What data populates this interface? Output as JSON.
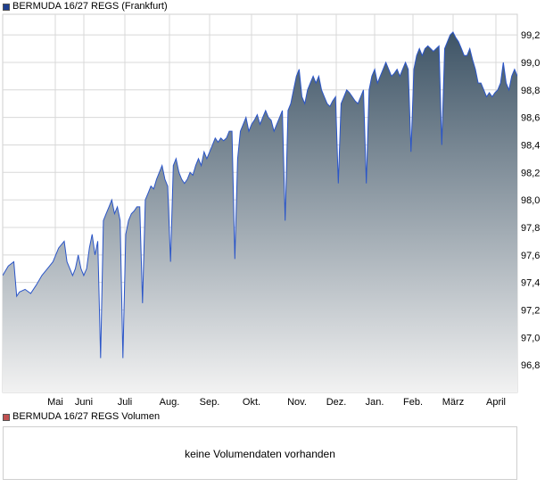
{
  "price_legend": {
    "label": "BERMUDA 16/27 REGS (Frankfurt)",
    "color": "#1f3f8f"
  },
  "volume_legend": {
    "label": "BERMUDA 16/27 REGS Volumen",
    "color": "#c05050"
  },
  "volume_message": "keine Volumendaten vorhanden",
  "colors": {
    "line": "#2a55c8",
    "fill_top": "#3e5466",
    "fill_bottom": "#f2f2f2",
    "grid": "#d8d8d8",
    "plot_bg": "#ffffff"
  },
  "chart_data": {
    "type": "area",
    "title": "",
    "xlabel": "",
    "ylabel": "",
    "ylim": [
      96.6,
      99.35
    ],
    "y_ticks": [
      "96,8",
      "97,0",
      "97,2",
      "97,4",
      "97,6",
      "97,8",
      "98,0",
      "98,2",
      "98,4",
      "98,6",
      "98,8",
      "99,0",
      "99,2"
    ],
    "x_ticks": [
      "Mai",
      "Juni",
      "Juli",
      "Aug.",
      "Sep.",
      "Okt.",
      "Nov.",
      "Dez.",
      "Jan.",
      "Feb.",
      "März",
      "April"
    ],
    "grid": true,
    "legend": "top-left",
    "series": [
      {
        "name": "BERMUDA 16/27 REGS (Frankfurt)",
        "points": [
          [
            0,
            97.45
          ],
          [
            2,
            97.52
          ],
          [
            4,
            97.55
          ],
          [
            5,
            97.3
          ],
          [
            6,
            97.33
          ],
          [
            8,
            97.35
          ],
          [
            10,
            97.32
          ],
          [
            12,
            97.38
          ],
          [
            14,
            97.45
          ],
          [
            16,
            97.5
          ],
          [
            18,
            97.55
          ],
          [
            20,
            97.65
          ],
          [
            22,
            97.7
          ],
          [
            23,
            97.55
          ],
          [
            24,
            97.5
          ],
          [
            25,
            97.45
          ],
          [
            26,
            97.5
          ],
          [
            27,
            97.6
          ],
          [
            28,
            97.5
          ],
          [
            29,
            97.45
          ],
          [
            30,
            97.5
          ],
          [
            31,
            97.65
          ],
          [
            32,
            97.75
          ],
          [
            33,
            97.6
          ],
          [
            34,
            97.7
          ],
          [
            35,
            96.85
          ],
          [
            36,
            97.85
          ],
          [
            37,
            97.9
          ],
          [
            38,
            97.95
          ],
          [
            39,
            98.0
          ],
          [
            40,
            97.9
          ],
          [
            41,
            97.95
          ],
          [
            42,
            97.85
          ],
          [
            43,
            96.85
          ],
          [
            44,
            97.75
          ],
          [
            45,
            97.85
          ],
          [
            46,
            97.9
          ],
          [
            47,
            97.92
          ],
          [
            48,
            97.95
          ],
          [
            49,
            97.95
          ],
          [
            50,
            97.25
          ],
          [
            51,
            98.0
          ],
          [
            52,
            98.05
          ],
          [
            53,
            98.1
          ],
          [
            54,
            98.08
          ],
          [
            55,
            98.15
          ],
          [
            56,
            98.2
          ],
          [
            57,
            98.25
          ],
          [
            58,
            98.15
          ],
          [
            59,
            98.1
          ],
          [
            60,
            97.55
          ],
          [
            61,
            98.25
          ],
          [
            62,
            98.3
          ],
          [
            63,
            98.2
          ],
          [
            64,
            98.15
          ],
          [
            65,
            98.12
          ],
          [
            66,
            98.15
          ],
          [
            67,
            98.2
          ],
          [
            68,
            98.18
          ],
          [
            69,
            98.25
          ],
          [
            70,
            98.3
          ],
          [
            71,
            98.25
          ],
          [
            72,
            98.35
          ],
          [
            73,
            98.3
          ],
          [
            74,
            98.35
          ],
          [
            75,
            98.4
          ],
          [
            76,
            98.45
          ],
          [
            77,
            98.42
          ],
          [
            78,
            98.45
          ],
          [
            79,
            98.43
          ],
          [
            80,
            98.45
          ],
          [
            81,
            98.5
          ],
          [
            82,
            98.5
          ],
          [
            83,
            97.57
          ],
          [
            84,
            98.3
          ],
          [
            85,
            98.5
          ],
          [
            86,
            98.55
          ],
          [
            87,
            98.6
          ],
          [
            88,
            98.5
          ],
          [
            89,
            98.55
          ],
          [
            90,
            98.58
          ],
          [
            91,
            98.62
          ],
          [
            92,
            98.55
          ],
          [
            93,
            98.6
          ],
          [
            94,
            98.65
          ],
          [
            95,
            98.6
          ],
          [
            96,
            98.58
          ],
          [
            97,
            98.5
          ],
          [
            98,
            98.55
          ],
          [
            99,
            98.6
          ],
          [
            100,
            98.65
          ],
          [
            101,
            97.85
          ],
          [
            102,
            98.65
          ],
          [
            103,
            98.7
          ],
          [
            104,
            98.8
          ],
          [
            105,
            98.9
          ],
          [
            106,
            98.95
          ],
          [
            107,
            98.75
          ],
          [
            108,
            98.7
          ],
          [
            109,
            98.8
          ],
          [
            110,
            98.85
          ],
          [
            111,
            98.9
          ],
          [
            112,
            98.85
          ],
          [
            113,
            98.9
          ],
          [
            114,
            98.8
          ],
          [
            115,
            98.75
          ],
          [
            116,
            98.7
          ],
          [
            117,
            98.68
          ],
          [
            118,
            98.72
          ],
          [
            119,
            98.75
          ],
          [
            120,
            98.12
          ],
          [
            121,
            98.7
          ],
          [
            122,
            98.75
          ],
          [
            123,
            98.8
          ],
          [
            124,
            98.78
          ],
          [
            125,
            98.75
          ],
          [
            126,
            98.72
          ],
          [
            127,
            98.7
          ],
          [
            128,
            98.75
          ],
          [
            129,
            98.8
          ],
          [
            130,
            98.12
          ],
          [
            131,
            98.8
          ],
          [
            132,
            98.9
          ],
          [
            133,
            98.95
          ],
          [
            134,
            98.85
          ],
          [
            135,
            98.9
          ],
          [
            136,
            98.95
          ],
          [
            137,
            99.0
          ],
          [
            138,
            98.95
          ],
          [
            139,
            98.9
          ],
          [
            140,
            98.92
          ],
          [
            141,
            98.95
          ],
          [
            142,
            98.9
          ],
          [
            143,
            98.95
          ],
          [
            144,
            99.0
          ],
          [
            145,
            98.95
          ],
          [
            146,
            98.35
          ],
          [
            147,
            98.95
          ],
          [
            148,
            99.05
          ],
          [
            149,
            99.1
          ],
          [
            150,
            99.05
          ],
          [
            151,
            99.1
          ],
          [
            152,
            99.12
          ],
          [
            153,
            99.1
          ],
          [
            154,
            99.08
          ],
          [
            155,
            99.1
          ],
          [
            156,
            99.12
          ],
          [
            157,
            98.4
          ],
          [
            158,
            99.1
          ],
          [
            159,
            99.15
          ],
          [
            160,
            99.2
          ],
          [
            161,
            99.22
          ],
          [
            162,
            99.18
          ],
          [
            163,
            99.15
          ],
          [
            164,
            99.1
          ],
          [
            165,
            99.05
          ],
          [
            166,
            99.05
          ],
          [
            167,
            99.1
          ],
          [
            168,
            99.02
          ],
          [
            169,
            98.95
          ],
          [
            170,
            98.85
          ],
          [
            171,
            98.85
          ],
          [
            172,
            98.8
          ],
          [
            173,
            98.75
          ],
          [
            174,
            98.78
          ],
          [
            175,
            98.75
          ],
          [
            176,
            98.78
          ],
          [
            177,
            98.8
          ],
          [
            178,
            98.85
          ],
          [
            179,
            99.0
          ],
          [
            180,
            98.85
          ],
          [
            181,
            98.8
          ],
          [
            182,
            98.9
          ],
          [
            183,
            98.95
          ],
          [
            184,
            98.9
          ]
        ]
      }
    ]
  }
}
